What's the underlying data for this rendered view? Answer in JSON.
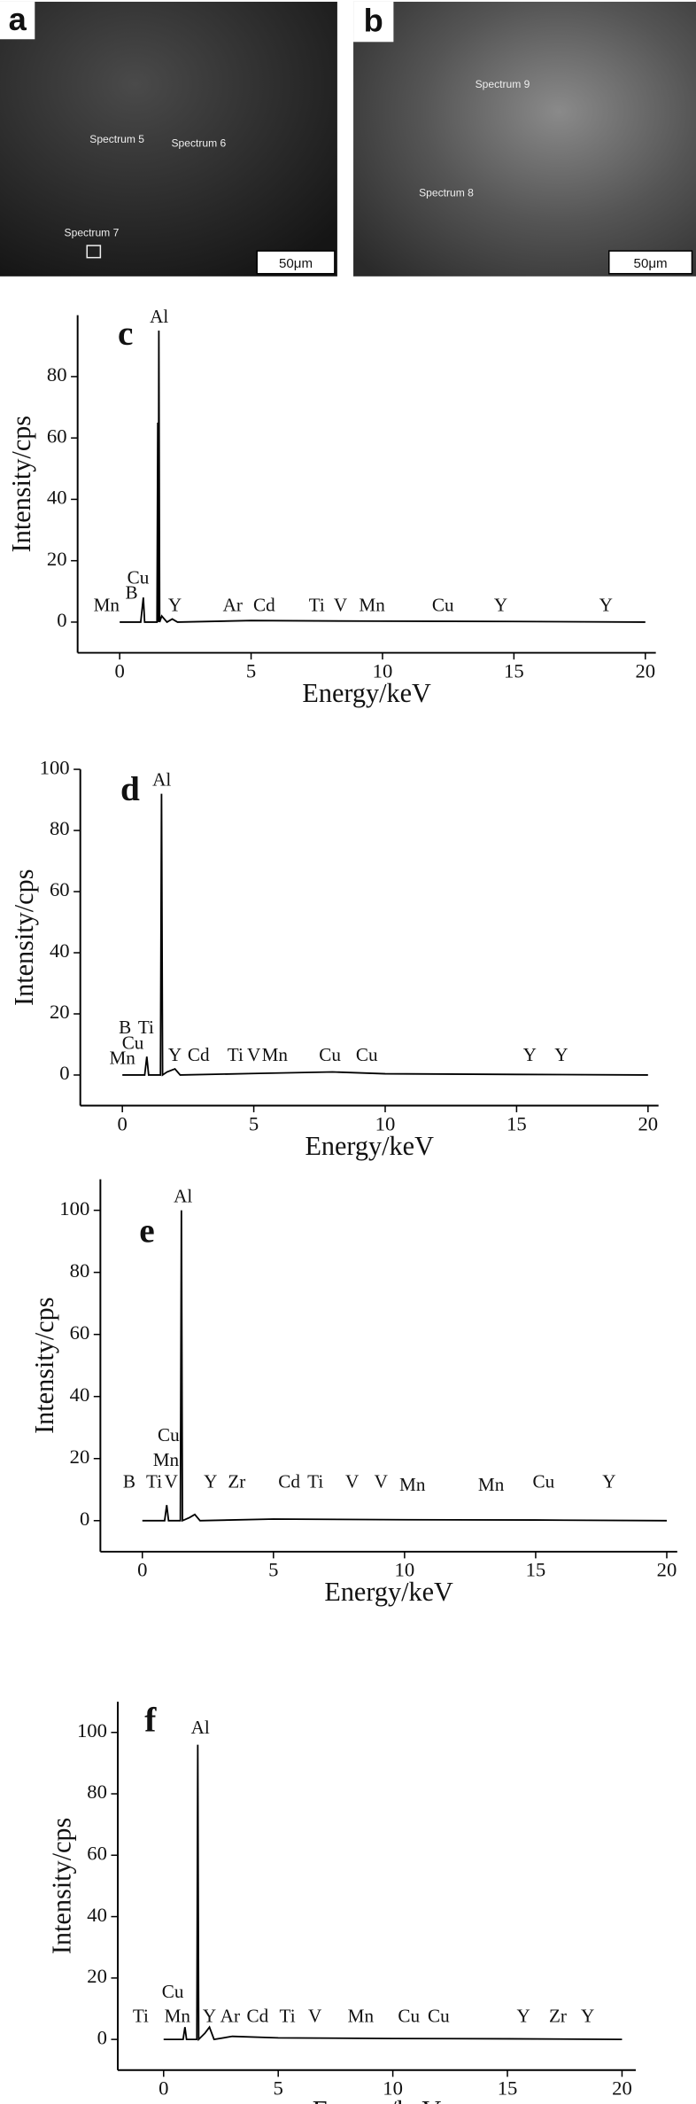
{
  "images": [
    {
      "label": "a",
      "annotations": [
        "Spectrum 5",
        "Spectrum 6",
        "Spectrum 7"
      ],
      "scale_bar": "50μm"
    },
    {
      "label": "b",
      "annotations": [
        "Spectrum 9",
        "Spectrum 8"
      ],
      "scale_bar": "50μm"
    }
  ],
  "chart_data": [
    {
      "type": "line",
      "panel": "c",
      "xlabel": "Energy/keV",
      "ylabel": "Intensity/cps",
      "color": "#000000",
      "x": [
        0,
        0.8,
        0.9,
        0.95,
        1.0,
        1.3,
        1.42,
        1.45,
        1.47,
        1.49,
        1.52,
        1.6,
        1.8,
        2.0,
        2.2,
        5,
        10,
        15,
        20
      ],
      "values": [
        0,
        0,
        8,
        0,
        0,
        0,
        0,
        65,
        0,
        95,
        0,
        2,
        0,
        1,
        0,
        0.5,
        0.3,
        0.2,
        0
      ],
      "xlim": [
        -1.6,
        20.4
      ],
      "ylim": [
        -10,
        100
      ],
      "xticks": [
        0,
        5,
        10,
        15,
        20
      ],
      "yticks": [
        0,
        20,
        40,
        60,
        80
      ],
      "annotations": [
        {
          "text": "Al",
          "x": 1.5,
          "y": 99
        },
        {
          "text": "Cu",
          "x": 0.7,
          "y": 14
        },
        {
          "text": "B",
          "x": 0.45,
          "y": 9
        },
        {
          "text": "Mn",
          "x": -0.5,
          "y": 5
        },
        {
          "text": "Y",
          "x": 2.1,
          "y": 5
        },
        {
          "text": "Ar",
          "x": 4.3,
          "y": 5
        },
        {
          "text": "Cd",
          "x": 5.5,
          "y": 5
        },
        {
          "text": "Ti",
          "x": 7.5,
          "y": 5
        },
        {
          "text": "V",
          "x": 8.4,
          "y": 5
        },
        {
          "text": "Mn",
          "x": 9.6,
          "y": 5
        },
        {
          "text": "Cu",
          "x": 12.3,
          "y": 5
        },
        {
          "text": "Y",
          "x": 14.5,
          "y": 5
        },
        {
          "text": "Y",
          "x": 18.5,
          "y": 5
        }
      ]
    },
    {
      "type": "line",
      "panel": "d",
      "xlabel": "Energy/keV",
      "ylabel": "Intensity/cps",
      "color": "#000000",
      "x": [
        0,
        0.85,
        0.93,
        1.0,
        1.3,
        1.45,
        1.49,
        1.53,
        1.7,
        2.0,
        2.2,
        5,
        8,
        10,
        15,
        20
      ],
      "values": [
        0,
        0,
        6,
        0,
        0,
        0,
        92,
        0,
        1,
        2,
        0,
        0.5,
        1,
        0.4,
        0.2,
        0
      ],
      "xlim": [
        -1.6,
        20.4
      ],
      "ylim": [
        -10,
        100
      ],
      "xticks": [
        0,
        5,
        10,
        15,
        20
      ],
      "yticks": [
        0,
        20,
        40,
        60,
        80,
        100
      ],
      "annotations": [
        {
          "text": "Al",
          "x": 1.5,
          "y": 96
        },
        {
          "text": "B",
          "x": 0.1,
          "y": 15
        },
        {
          "text": "Ti",
          "x": 0.9,
          "y": 15
        },
        {
          "text": "Cu",
          "x": 0.4,
          "y": 10
        },
        {
          "text": "Mn",
          "x": 0,
          "y": 5
        },
        {
          "text": "Y",
          "x": 2.0,
          "y": 6
        },
        {
          "text": "Cd",
          "x": 2.9,
          "y": 6
        },
        {
          "text": "Ti",
          "x": 4.3,
          "y": 6
        },
        {
          "text": "V",
          "x": 5.0,
          "y": 6
        },
        {
          "text": "Mn",
          "x": 5.8,
          "y": 6
        },
        {
          "text": "Cu",
          "x": 7.9,
          "y": 6
        },
        {
          "text": "Cu",
          "x": 9.3,
          "y": 6
        },
        {
          "text": "Y",
          "x": 15.5,
          "y": 6
        },
        {
          "text": "Y",
          "x": 16.7,
          "y": 6
        }
      ]
    },
    {
      "type": "line",
      "panel": "e",
      "xlabel": "Energy/keV",
      "ylabel": "Intensity/cps",
      "color": "#000000",
      "x": [
        0,
        0.85,
        0.93,
        1.0,
        1.3,
        1.45,
        1.49,
        1.53,
        1.8,
        2.0,
        2.2,
        5,
        10,
        15,
        20
      ],
      "values": [
        0,
        0,
        5,
        0,
        0,
        0,
        100,
        0,
        1,
        2,
        0,
        0.5,
        0.3,
        0.2,
        0
      ],
      "xlim": [
        -1.6,
        20.4
      ],
      "ylim": [
        -10,
        110
      ],
      "xticks": [
        0,
        5,
        10,
        15,
        20
      ],
      "yticks": [
        0,
        20,
        40,
        60,
        80,
        100
      ],
      "annotations": [
        {
          "text": "Al",
          "x": 1.55,
          "y": 104
        },
        {
          "text": "Cu",
          "x": 1.0,
          "y": 27
        },
        {
          "text": "Mn",
          "x": 0.9,
          "y": 19
        },
        {
          "text": "B",
          "x": -0.5,
          "y": 12
        },
        {
          "text": "Ti",
          "x": 0.45,
          "y": 12
        },
        {
          "text": "V",
          "x": 1.1,
          "y": 12
        },
        {
          "text": "Y",
          "x": 2.6,
          "y": 12
        },
        {
          "text": "Zr",
          "x": 3.6,
          "y": 12
        },
        {
          "text": "Cd",
          "x": 5.6,
          "y": 12
        },
        {
          "text": "Ti",
          "x": 6.6,
          "y": 12
        },
        {
          "text": "V",
          "x": 8.0,
          "y": 12
        },
        {
          "text": "V",
          "x": 9.1,
          "y": 12
        },
        {
          "text": "Mn",
          "x": 10.3,
          "y": 11
        },
        {
          "text": "Mn",
          "x": 13.3,
          "y": 11
        },
        {
          "text": "Cu",
          "x": 15.3,
          "y": 12
        },
        {
          "text": "Y",
          "x": 17.8,
          "y": 12
        }
      ]
    },
    {
      "type": "line",
      "panel": "f",
      "xlabel": "Energy/keV",
      "ylabel": "Intensity/cps",
      "color": "#000000",
      "x": [
        0,
        0.85,
        0.93,
        1.0,
        1.3,
        1.45,
        1.49,
        1.53,
        1.8,
        2.0,
        2.2,
        3,
        5,
        10,
        15,
        20
      ],
      "values": [
        0,
        0,
        4,
        0,
        0,
        0,
        96,
        0,
        2,
        4,
        0,
        1,
        0.5,
        0.3,
        0.2,
        0
      ],
      "xlim": [
        -2,
        20.6
      ],
      "ylim": [
        -10,
        110
      ],
      "xticks": [
        0,
        5,
        10,
        15,
        20
      ],
      "yticks": [
        0,
        20,
        40,
        60,
        80,
        100
      ],
      "annotations": [
        {
          "text": "Al",
          "x": 1.6,
          "y": 101
        },
        {
          "text": "Cu",
          "x": 0.4,
          "y": 15
        },
        {
          "text": "Ti",
          "x": -1.0,
          "y": 7
        },
        {
          "text": "Mn",
          "x": 0.6,
          "y": 7
        },
        {
          "text": "Y",
          "x": 2.0,
          "y": 7
        },
        {
          "text": "Ar",
          "x": 2.9,
          "y": 7
        },
        {
          "text": "Cd",
          "x": 4.1,
          "y": 7
        },
        {
          "text": "Ti",
          "x": 5.4,
          "y": 7
        },
        {
          "text": "V",
          "x": 6.6,
          "y": 7
        },
        {
          "text": "Mn",
          "x": 8.6,
          "y": 7
        },
        {
          "text": "Cu",
          "x": 10.7,
          "y": 7
        },
        {
          "text": "Cu",
          "x": 12.0,
          "y": 7
        },
        {
          "text": "Y",
          "x": 15.7,
          "y": 7
        },
        {
          "text": "Zr",
          "x": 17.2,
          "y": 7
        },
        {
          "text": "Y",
          "x": 18.5,
          "y": 7
        }
      ]
    }
  ]
}
